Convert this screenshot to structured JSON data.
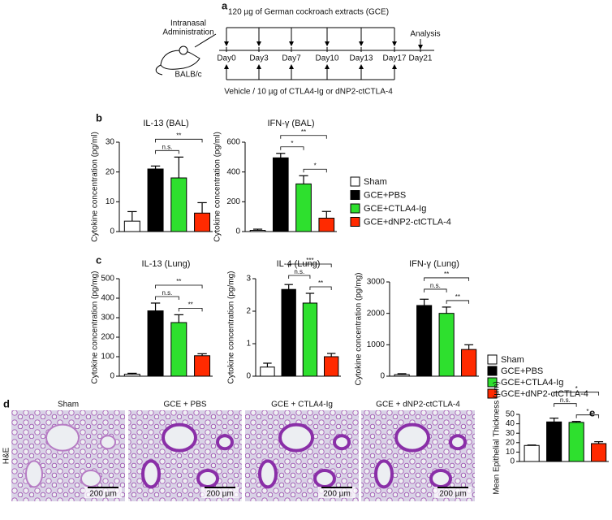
{
  "figure": {
    "panel_a": {
      "letter": "a",
      "top_text": "120 µg of German cockroach extracts (GCE)",
      "route": [
        "Intranasal",
        "Administration"
      ],
      "strain": "BALB/c",
      "days": [
        "Day0",
        "Day3",
        "Day7",
        "Day10",
        "Day13",
        "Day17",
        "Day21"
      ],
      "analysis": "Analysis",
      "bottom_text": "Vehicle / 10 µg of CTLA4-Ig or dNP2-ctCTLA-4"
    },
    "panel_b": {
      "letter": "b"
    },
    "panel_c": {
      "letter": "c"
    },
    "panel_d": {
      "letter": "d",
      "stain": "H&E",
      "images": [
        {
          "label": "Sham",
          "scale": "200 µm"
        },
        {
          "label": "GCE + PBS",
          "scale": "200 µm"
        },
        {
          "label": "GCE + CTLA4-Ig",
          "scale": "200 µm"
        },
        {
          "label": "GCE + dNP2-ctCTLA-4",
          "scale": "200 µm"
        }
      ]
    },
    "panel_e": {
      "letter": "e"
    }
  },
  "legend": [
    {
      "name": "Sham",
      "color": "#ffffff"
    },
    {
      "name": "GCE+PBS",
      "color": "#000000"
    },
    {
      "name": "GCE+CTLA4-Ig",
      "color": "#2ee02e"
    },
    {
      "name": "GCE+dNP2-ctCTLA-4",
      "color": "#ff2a00"
    }
  ],
  "chart_data": [
    {
      "type": "bar",
      "title": "IL-13 (BAL)",
      "ylabel": "Cytokine concentration (pg/ml)",
      "ylim": [
        0,
        30
      ],
      "yticks": [
        0,
        10,
        20,
        30
      ],
      "values": [
        3.5,
        21,
        18,
        6.2
      ],
      "errors": [
        3.2,
        1,
        7,
        3.5
      ],
      "significance": [
        {
          "pair": [
            1,
            2
          ],
          "label": "n.s."
        },
        {
          "pair": [
            1,
            3
          ],
          "label": "**"
        }
      ]
    },
    {
      "type": "bar",
      "title": "IFN-γ (BAL)",
      "ylabel": "Cytokine concentration (pg/ml)",
      "ylim": [
        0,
        600
      ],
      "yticks": [
        0,
        200,
        400,
        600
      ],
      "values": [
        8,
        495,
        320,
        90
      ],
      "errors": [
        8,
        30,
        55,
        45
      ],
      "significance": [
        {
          "pair": [
            2,
            3
          ],
          "label": "*"
        },
        {
          "pair": [
            1,
            2
          ],
          "label": "*"
        },
        {
          "pair": [
            1,
            3
          ],
          "label": "**"
        }
      ]
    },
    {
      "type": "bar",
      "title": "IL-13 (Lung)",
      "ylabel": "Cytokine concentration (pg/mg)",
      "ylim": [
        0,
        500
      ],
      "yticks": [
        0,
        100,
        200,
        300,
        400,
        500
      ],
      "values": [
        10,
        335,
        275,
        105
      ],
      "errors": [
        5,
        40,
        40,
        10
      ],
      "significance": [
        {
          "pair": [
            2,
            3
          ],
          "label": "**"
        },
        {
          "pair": [
            1,
            2
          ],
          "label": "n.s."
        },
        {
          "pair": [
            1,
            3
          ],
          "label": "**"
        }
      ]
    },
    {
      "type": "bar",
      "title": "IL-4 (Lung)",
      "ylabel": "Cytokine concentration (pg/mg)",
      "ylim": [
        0,
        3
      ],
      "yticks": [
        0,
        1,
        2,
        3
      ],
      "values": [
        0.28,
        2.67,
        2.25,
        0.6
      ],
      "errors": [
        0.12,
        0.15,
        0.3,
        0.1
      ],
      "significance": [
        {
          "pair": [
            2,
            3
          ],
          "label": "**"
        },
        {
          "pair": [
            1,
            2
          ],
          "label": "n.s."
        },
        {
          "pair": [
            1,
            3
          ],
          "label": "***"
        }
      ]
    },
    {
      "type": "bar",
      "title": "IFN-γ (Lung)",
      "ylabel": "Cytokine concentration (pg/mg)",
      "ylim": [
        0,
        3000
      ],
      "yticks": [
        0,
        1000,
        2000,
        3000
      ],
      "values": [
        50,
        2250,
        2000,
        850
      ],
      "errors": [
        30,
        200,
        200,
        150
      ],
      "significance": [
        {
          "pair": [
            2,
            3
          ],
          "label": "**"
        },
        {
          "pair": [
            1,
            2
          ],
          "label": "n.s."
        },
        {
          "pair": [
            1,
            3
          ],
          "label": "**"
        }
      ]
    },
    {
      "type": "bar",
      "ylabel": "Mean Epithelial Thickness (µm)",
      "ylim": [
        0,
        50
      ],
      "yticks": [
        0,
        10,
        20,
        30,
        40,
        50
      ],
      "values": [
        17,
        42,
        41.5,
        19
      ],
      "errors": [
        0.5,
        4,
        1,
        2
      ],
      "significance": [
        {
          "pair": [
            2,
            3
          ],
          "label": "*"
        },
        {
          "pair": [
            1,
            2
          ],
          "label": "n.s."
        },
        {
          "pair": [
            1,
            3
          ],
          "label": "*"
        }
      ]
    }
  ]
}
